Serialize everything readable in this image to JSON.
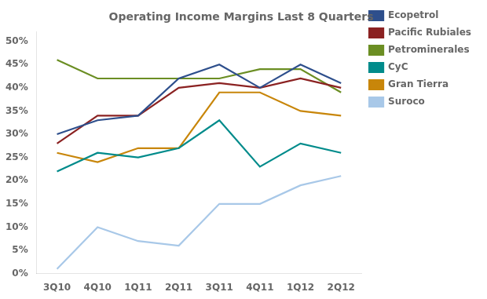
{
  "chart_data": {
    "type": "line",
    "title": "Operating Income Margins Last 8 Quarters",
    "categories": [
      "3Q10",
      "4Q10",
      "1Q11",
      "2Q11",
      "3Q11",
      "4Q11",
      "1Q12",
      "2Q12"
    ],
    "series": [
      {
        "name": "Ecopetrol",
        "color": "#2E4F8C",
        "values": [
          0.3,
          0.33,
          0.34,
          0.42,
          0.45,
          0.4,
          0.45,
          0.41
        ]
      },
      {
        "name": "Pacific Rubiales",
        "color": "#8B2222",
        "values": [
          0.28,
          0.34,
          0.34,
          0.4,
          0.41,
          0.4,
          0.42,
          0.4
        ]
      },
      {
        "name": "Petrominerales",
        "color": "#6B8E23",
        "values": [
          0.46,
          0.42,
          0.42,
          0.42,
          0.42,
          0.44,
          0.44,
          0.39
        ]
      },
      {
        "name": "CyC",
        "color": "#008B8B",
        "values": [
          0.22,
          0.26,
          0.25,
          0.27,
          0.33,
          0.23,
          0.28,
          0.26
        ]
      },
      {
        "name": "Gran Tierra",
        "color": "#C8860A",
        "values": [
          0.26,
          0.24,
          0.27,
          0.27,
          0.39,
          0.39,
          0.35,
          0.34
        ]
      },
      {
        "name": "Suroco",
        "color": "#A8C8E8",
        "values": [
          0.01,
          0.1,
          0.07,
          0.06,
          0.15,
          0.15,
          0.19,
          0.21
        ]
      }
    ],
    "ylim": [
      0.0,
      0.52
    ],
    "yticks": [
      {
        "value": 0.0,
        "label": "0%"
      },
      {
        "value": 0.05,
        "label": "5%"
      },
      {
        "value": 0.1,
        "label": "10%"
      },
      {
        "value": 0.15,
        "label": "15%"
      },
      {
        "value": 0.2,
        "label": "20%"
      },
      {
        "value": 0.25,
        "label": "25%"
      },
      {
        "value": 0.3,
        "label": "30%"
      },
      {
        "value": 0.35,
        "label": "35%"
      },
      {
        "value": 0.4,
        "label": "40%"
      },
      {
        "value": 0.45,
        "label": "45%"
      },
      {
        "value": 0.5,
        "label": "50%"
      }
    ],
    "grid": false,
    "legend": "right"
  }
}
